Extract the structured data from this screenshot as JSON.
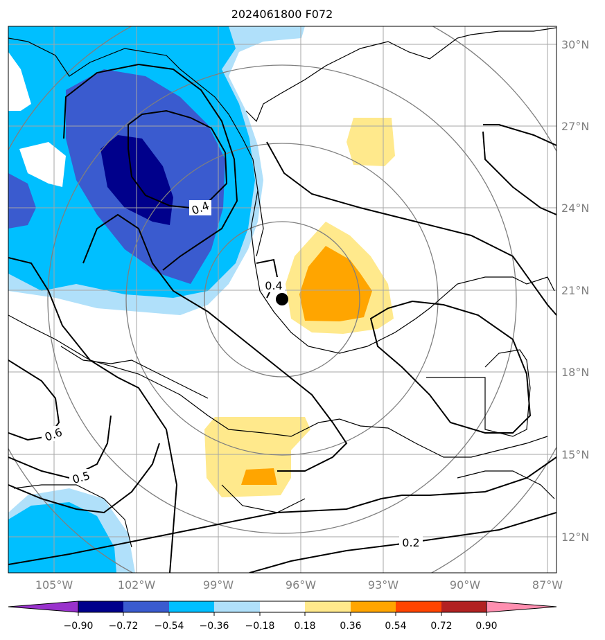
{
  "title": "2024061800 F072",
  "lat_labels": [
    "30°N",
    "27°N",
    "24°N",
    "21°N",
    "18°N",
    "15°N",
    "12°N"
  ],
  "lon_labels": [
    "105°W",
    "102°W",
    "99°W",
    "96°W",
    "93°W",
    "90°W",
    "87°W"
  ],
  "contour_labels": [
    "0.4",
    "0.4",
    "0.6",
    "0.5",
    "0.2"
  ],
  "colorbar": {
    "tick_labels": [
      "−0.90",
      "−0.72",
      "−0.54",
      "−0.36",
      "−0.18",
      "0.18",
      "0.36",
      "0.54",
      "0.72",
      "0.90"
    ],
    "colors": [
      "#9932cc",
      "#00008b",
      "#3a5bcf",
      "#00bfff",
      "#b0e0fa",
      "#ffffff",
      "#ffe98c",
      "#ffa500",
      "#ff4500",
      "#b22222",
      "#ff8fb0"
    ]
  },
  "marker": {
    "name": "center-point",
    "lat": 20.7,
    "lon": -96.7
  }
}
